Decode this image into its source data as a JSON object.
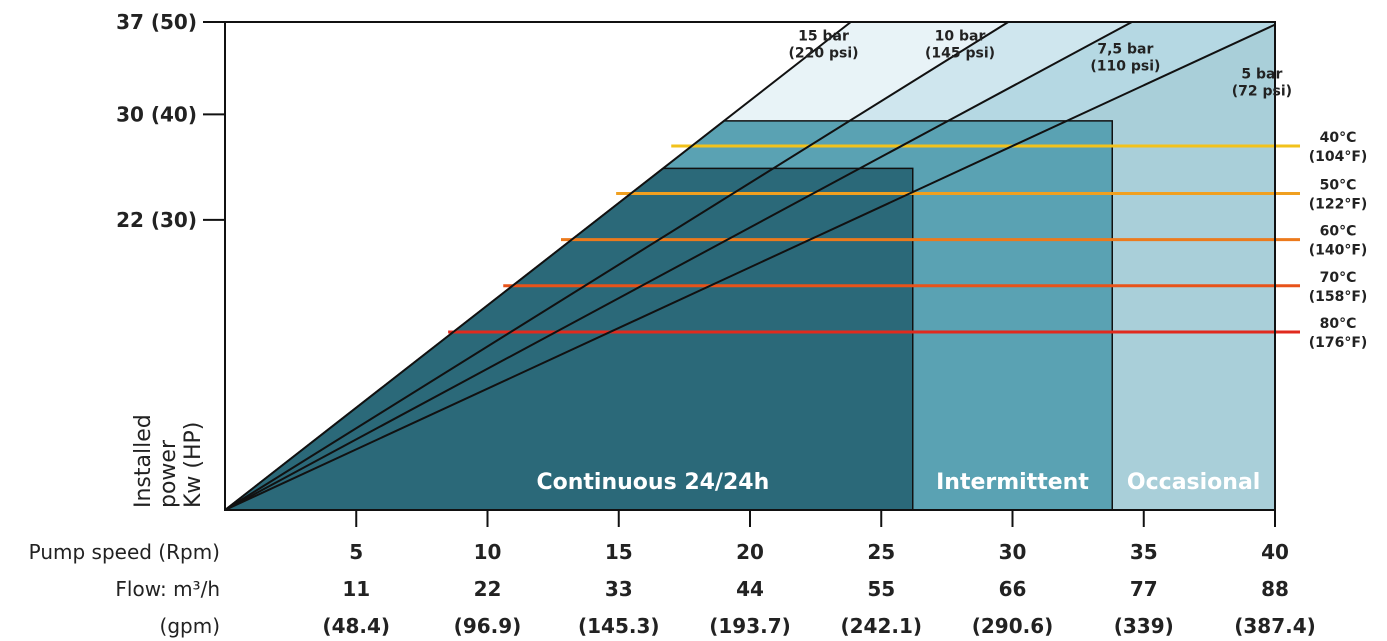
{
  "chart_data": {
    "type": "area",
    "y_ticks": [
      {
        "value": 37,
        "label": "37 (50)"
      },
      {
        "value": 30,
        "label": "30 (40)"
      },
      {
        "value": 22,
        "label": "22 (30)"
      }
    ],
    "ylabel_lines": [
      "Installed",
      "power",
      "Kw (HP)"
    ],
    "ylim": [
      0,
      37
    ],
    "xlim": [
      0,
      40
    ],
    "x_ticks": [
      5,
      10,
      15,
      20,
      25,
      30,
      35,
      40
    ],
    "x_rows": [
      {
        "label": "Pump speed (Rpm)",
        "values": [
          "5",
          "10",
          "15",
          "20",
          "25",
          "30",
          "35",
          "40"
        ]
      },
      {
        "label": "Flow: m³/h",
        "values": [
          "11",
          "22",
          "33",
          "44",
          "55",
          "66",
          "77",
          "88"
        ]
      },
      {
        "label": "(gpm)",
        "values": [
          "(48.4)",
          "(96.9)",
          "(145.3)",
          "(193.7)",
          "(242.1)",
          "(290.6)",
          "(339)",
          "(387.4)"
        ]
      }
    ],
    "pressure_lines": [
      {
        "name": "15 bar",
        "sub": "(220 psi)",
        "slope": 1.552,
        "label_x": 22.8,
        "label_y": 35.6
      },
      {
        "name": "10 bar",
        "sub": "(145 psi)",
        "slope": 1.24,
        "label_x": 28.0,
        "label_y": 35.6
      },
      {
        "name": "7,5 bar",
        "sub": "(110 psi)",
        "slope": 1.071,
        "label_x": 34.3,
        "label_y": 34.6
      },
      {
        "name": "5 bar",
        "sub": "(72 psi)",
        "slope": 0.92,
        "label_x": 39.5,
        "label_y": 32.7
      }
    ],
    "zones": [
      {
        "name": "Continuous 24/24h",
        "x_end": 26.2,
        "y_top": 25.9,
        "color": "#2b6979"
      },
      {
        "name": "Intermittent",
        "x_end": 33.8,
        "y_top": 29.5,
        "color": "#5aa2b3"
      },
      {
        "name": "Occasional",
        "x_end": 40.0,
        "y_top": 37.0,
        "color": "#a9cfd9"
      }
    ],
    "temperature_lines": [
      {
        "label": "40°C",
        "sub": "(104°F)",
        "y": 27.6,
        "x_start": 17.0,
        "color": "#f2c21b"
      },
      {
        "label": "50°C",
        "sub": "(122°F)",
        "y": 24.0,
        "x_start": 14.9,
        "color": "#f0a020"
      },
      {
        "label": "60°C",
        "sub": "(140°F)",
        "y": 20.5,
        "x_start": 12.8,
        "color": "#ec7a1c"
      },
      {
        "label": "70°C",
        "sub": "(158°F)",
        "y": 17.0,
        "x_start": 10.6,
        "color": "#e8531a"
      },
      {
        "label": "80°C",
        "sub": "(176°F)",
        "y": 13.5,
        "x_start": 8.5,
        "color": "#e02a1e"
      }
    ]
  }
}
